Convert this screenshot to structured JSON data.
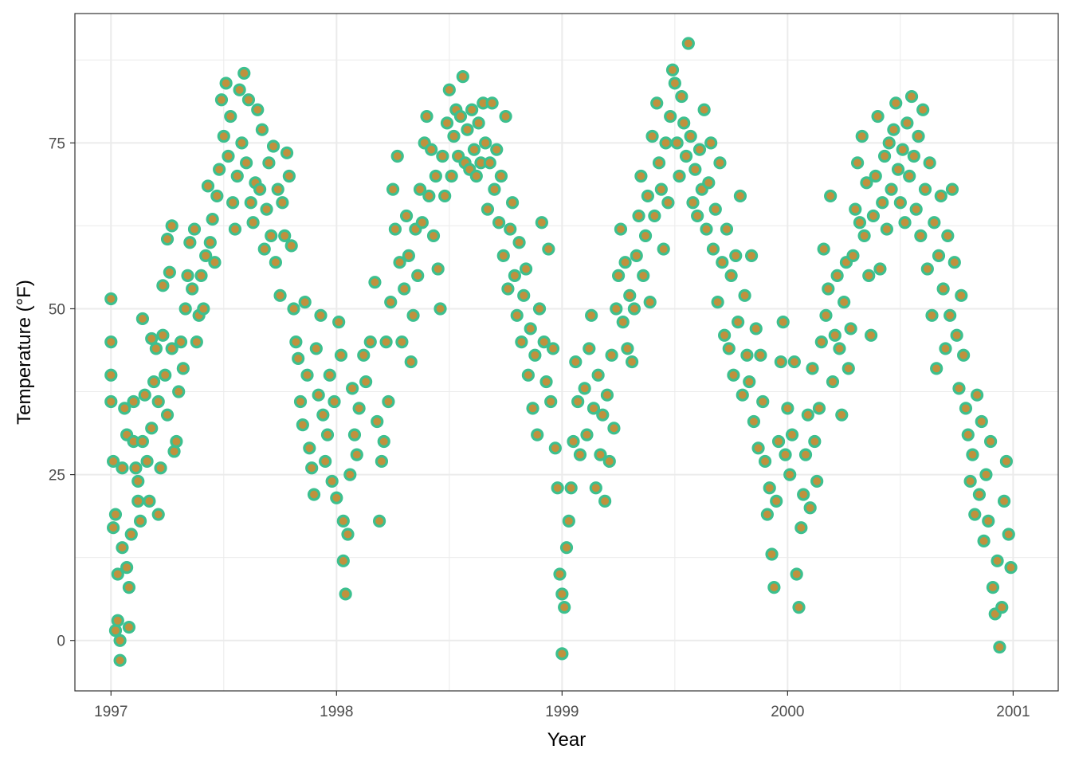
{
  "chart_data": {
    "type": "scatter",
    "xlabel": "Year",
    "ylabel": "Temperature (°F)",
    "xlim": [
      1996.84,
      2001.2
    ],
    "ylim": [
      -7.6,
      94.5
    ],
    "x_ticks": [
      1997,
      1998,
      1999,
      2000,
      2001
    ],
    "x_tick_labels": [
      "1997",
      "1998",
      "1999",
      "2000",
      "2001"
    ],
    "y_ticks": [
      0,
      25,
      50,
      75
    ],
    "y_tick_labels": [
      "0",
      "25",
      "50",
      "75"
    ],
    "grid": true,
    "theme": "bw",
    "colors": {
      "point_fill": "#c0913d",
      "point_stroke": "#3cc08f",
      "grid": "#ebebeb",
      "panel_border": "#333333"
    },
    "points": [
      [
        1997.0,
        45
      ],
      [
        1997.0,
        51.5
      ],
      [
        1997.0,
        40
      ],
      [
        1997.0,
        36
      ],
      [
        1997.01,
        27
      ],
      [
        1997.01,
        17
      ],
      [
        1997.02,
        19
      ],
      [
        1997.02,
        1.5
      ],
      [
        1997.03,
        3
      ],
      [
        1997.03,
        10
      ],
      [
        1997.04,
        -3
      ],
      [
        1997.04,
        0
      ],
      [
        1997.05,
        14
      ],
      [
        1997.05,
        26
      ],
      [
        1997.06,
        35
      ],
      [
        1997.07,
        31
      ],
      [
        1997.07,
        11
      ],
      [
        1997.08,
        8
      ],
      [
        1997.08,
        2
      ],
      [
        1997.09,
        16
      ],
      [
        1997.1,
        36
      ],
      [
        1997.1,
        30
      ],
      [
        1997.11,
        26
      ],
      [
        1997.12,
        21
      ],
      [
        1997.12,
        24
      ],
      [
        1997.13,
        18
      ],
      [
        1997.14,
        30
      ],
      [
        1997.14,
        48.5
      ],
      [
        1997.15,
        37
      ],
      [
        1997.16,
        27
      ],
      [
        1997.17,
        21
      ],
      [
        1997.18,
        32
      ],
      [
        1997.18,
        45.5
      ],
      [
        1997.19,
        39
      ],
      [
        1997.2,
        44
      ],
      [
        1997.21,
        36
      ],
      [
        1997.21,
        19
      ],
      [
        1997.22,
        26
      ],
      [
        1997.23,
        46
      ],
      [
        1997.23,
        53.5
      ],
      [
        1997.24,
        40
      ],
      [
        1997.25,
        60.5
      ],
      [
        1997.25,
        34
      ],
      [
        1997.26,
        55.5
      ],
      [
        1997.27,
        62.5
      ],
      [
        1997.27,
        44
      ],
      [
        1997.28,
        28.5
      ],
      [
        1997.29,
        30
      ],
      [
        1997.3,
        37.5
      ],
      [
        1997.31,
        45
      ],
      [
        1997.32,
        41
      ],
      [
        1997.33,
        50
      ],
      [
        1997.34,
        55
      ],
      [
        1997.35,
        60
      ],
      [
        1997.36,
        53
      ],
      [
        1997.37,
        62
      ],
      [
        1997.38,
        45
      ],
      [
        1997.39,
        49
      ],
      [
        1997.4,
        55
      ],
      [
        1997.41,
        50
      ],
      [
        1997.42,
        58
      ],
      [
        1997.43,
        68.5
      ],
      [
        1997.44,
        60
      ],
      [
        1997.45,
        63.5
      ],
      [
        1997.46,
        57
      ],
      [
        1997.47,
        67
      ],
      [
        1997.48,
        71
      ],
      [
        1997.49,
        81.5
      ],
      [
        1997.5,
        76
      ],
      [
        1997.51,
        84
      ],
      [
        1997.52,
        73
      ],
      [
        1997.53,
        79
      ],
      [
        1997.54,
        66
      ],
      [
        1997.55,
        62
      ],
      [
        1997.56,
        70
      ],
      [
        1997.57,
        83
      ],
      [
        1997.58,
        75
      ],
      [
        1997.59,
        85.5
      ],
      [
        1997.6,
        72
      ],
      [
        1997.61,
        81.5
      ],
      [
        1997.62,
        66
      ],
      [
        1997.63,
        63
      ],
      [
        1997.64,
        69
      ],
      [
        1997.65,
        80
      ],
      [
        1997.66,
        68
      ],
      [
        1997.67,
        77
      ],
      [
        1997.68,
        59
      ],
      [
        1997.69,
        65
      ],
      [
        1997.7,
        72
      ],
      [
        1997.71,
        61
      ],
      [
        1997.72,
        74.5
      ],
      [
        1997.73,
        57
      ],
      [
        1997.74,
        68
      ],
      [
        1997.75,
        52
      ],
      [
        1997.76,
        66
      ],
      [
        1997.77,
        61
      ],
      [
        1997.78,
        73.5
      ],
      [
        1997.79,
        70
      ],
      [
        1997.8,
        59.5
      ],
      [
        1997.81,
        50
      ],
      [
        1997.82,
        45
      ],
      [
        1997.83,
        42.5
      ],
      [
        1997.84,
        36
      ],
      [
        1997.85,
        32.5
      ],
      [
        1997.86,
        51
      ],
      [
        1997.87,
        40
      ],
      [
        1997.88,
        29
      ],
      [
        1997.89,
        26
      ],
      [
        1997.9,
        22
      ],
      [
        1997.91,
        44
      ],
      [
        1997.92,
        37
      ],
      [
        1997.93,
        49
      ],
      [
        1997.94,
        34
      ],
      [
        1997.95,
        27
      ],
      [
        1997.96,
        31
      ],
      [
        1997.97,
        40
      ],
      [
        1997.98,
        24
      ],
      [
        1997.99,
        36
      ],
      [
        1998.0,
        21.5
      ],
      [
        1998.01,
        48
      ],
      [
        1998.02,
        43
      ],
      [
        1998.03,
        18
      ],
      [
        1998.03,
        12
      ],
      [
        1998.04,
        7
      ],
      [
        1998.05,
        16
      ],
      [
        1998.06,
        25
      ],
      [
        1998.07,
        38
      ],
      [
        1998.08,
        31
      ],
      [
        1998.09,
        28
      ],
      [
        1998.1,
        35
      ],
      [
        1998.12,
        43
      ],
      [
        1998.13,
        39
      ],
      [
        1998.15,
        45
      ],
      [
        1998.17,
        54
      ],
      [
        1998.18,
        33
      ],
      [
        1998.19,
        18
      ],
      [
        1998.2,
        27
      ],
      [
        1998.21,
        30
      ],
      [
        1998.22,
        45
      ],
      [
        1998.23,
        36
      ],
      [
        1998.24,
        51
      ],
      [
        1998.25,
        68
      ],
      [
        1998.26,
        62
      ],
      [
        1998.27,
        73
      ],
      [
        1998.28,
        57
      ],
      [
        1998.29,
        45
      ],
      [
        1998.3,
        53
      ],
      [
        1998.31,
        64
      ],
      [
        1998.32,
        58
      ],
      [
        1998.33,
        42
      ],
      [
        1998.34,
        49
      ],
      [
        1998.35,
        62
      ],
      [
        1998.36,
        55
      ],
      [
        1998.37,
        68
      ],
      [
        1998.38,
        63
      ],
      [
        1998.39,
        75
      ],
      [
        1998.4,
        79
      ],
      [
        1998.41,
        67
      ],
      [
        1998.42,
        74
      ],
      [
        1998.43,
        61
      ],
      [
        1998.44,
        70
      ],
      [
        1998.45,
        56
      ],
      [
        1998.46,
        50
      ],
      [
        1998.47,
        73
      ],
      [
        1998.48,
        67
      ],
      [
        1998.49,
        78
      ],
      [
        1998.5,
        83
      ],
      [
        1998.51,
        70
      ],
      [
        1998.52,
        76
      ],
      [
        1998.53,
        80
      ],
      [
        1998.54,
        73
      ],
      [
        1998.55,
        79
      ],
      [
        1998.56,
        85
      ],
      [
        1998.57,
        72
      ],
      [
        1998.58,
        77
      ],
      [
        1998.59,
        71
      ],
      [
        1998.6,
        80
      ],
      [
        1998.61,
        74
      ],
      [
        1998.62,
        70
      ],
      [
        1998.63,
        78
      ],
      [
        1998.64,
        72
      ],
      [
        1998.65,
        81
      ],
      [
        1998.66,
        75
      ],
      [
        1998.67,
        65
      ],
      [
        1998.68,
        72
      ],
      [
        1998.69,
        81
      ],
      [
        1998.7,
        68
      ],
      [
        1998.71,
        74
      ],
      [
        1998.72,
        63
      ],
      [
        1998.73,
        70
      ],
      [
        1998.74,
        58
      ],
      [
        1998.75,
        79
      ],
      [
        1998.76,
        53
      ],
      [
        1998.77,
        62
      ],
      [
        1998.78,
        66
      ],
      [
        1998.79,
        55
      ],
      [
        1998.8,
        49
      ],
      [
        1998.81,
        60
      ],
      [
        1998.82,
        45
      ],
      [
        1998.83,
        52
      ],
      [
        1998.84,
        56
      ],
      [
        1998.85,
        40
      ],
      [
        1998.86,
        47
      ],
      [
        1998.87,
        35
      ],
      [
        1998.88,
        43
      ],
      [
        1998.89,
        31
      ],
      [
        1998.9,
        50
      ],
      [
        1998.91,
        63
      ],
      [
        1998.92,
        45
      ],
      [
        1998.93,
        39
      ],
      [
        1998.94,
        59
      ],
      [
        1998.95,
        36
      ],
      [
        1998.96,
        44
      ],
      [
        1998.97,
        29
      ],
      [
        1998.98,
        23
      ],
      [
        1998.99,
        10
      ],
      [
        1999.0,
        7
      ],
      [
        1999.0,
        -2
      ],
      [
        1999.01,
        5
      ],
      [
        1999.02,
        14
      ],
      [
        1999.03,
        18
      ],
      [
        1999.04,
        23
      ],
      [
        1999.05,
        30
      ],
      [
        1999.06,
        42
      ],
      [
        1999.07,
        36
      ],
      [
        1999.08,
        28
      ],
      [
        1999.1,
        38
      ],
      [
        1999.11,
        31
      ],
      [
        1999.12,
        44
      ],
      [
        1999.13,
        49
      ],
      [
        1999.14,
        35
      ],
      [
        1999.15,
        23
      ],
      [
        1999.16,
        40
      ],
      [
        1999.17,
        28
      ],
      [
        1999.18,
        34
      ],
      [
        1999.19,
        21
      ],
      [
        1999.2,
        37
      ],
      [
        1999.21,
        27
      ],
      [
        1999.22,
        43
      ],
      [
        1999.23,
        32
      ],
      [
        1999.24,
        50
      ],
      [
        1999.25,
        55
      ],
      [
        1999.26,
        62
      ],
      [
        1999.27,
        48
      ],
      [
        1999.28,
        57
      ],
      [
        1999.29,
        44
      ],
      [
        1999.3,
        52
      ],
      [
        1999.31,
        42
      ],
      [
        1999.32,
        50
      ],
      [
        1999.33,
        58
      ],
      [
        1999.34,
        64
      ],
      [
        1999.35,
        70
      ],
      [
        1999.36,
        55
      ],
      [
        1999.37,
        61
      ],
      [
        1999.38,
        67
      ],
      [
        1999.39,
        51
      ],
      [
        1999.4,
        76
      ],
      [
        1999.41,
        64
      ],
      [
        1999.42,
        81
      ],
      [
        1999.43,
        72
      ],
      [
        1999.44,
        68
      ],
      [
        1999.45,
        59
      ],
      [
        1999.46,
        75
      ],
      [
        1999.47,
        66
      ],
      [
        1999.48,
        79
      ],
      [
        1999.49,
        86
      ],
      [
        1999.5,
        84
      ],
      [
        1999.51,
        75
      ],
      [
        1999.52,
        70
      ],
      [
        1999.53,
        82
      ],
      [
        1999.54,
        78
      ],
      [
        1999.55,
        73
      ],
      [
        1999.56,
        90
      ],
      [
        1999.57,
        76
      ],
      [
        1999.58,
        66
      ],
      [
        1999.59,
        71
      ],
      [
        1999.6,
        64
      ],
      [
        1999.61,
        74
      ],
      [
        1999.62,
        68
      ],
      [
        1999.63,
        80
      ],
      [
        1999.64,
        62
      ],
      [
        1999.65,
        69
      ],
      [
        1999.66,
        75
      ],
      [
        1999.67,
        59
      ],
      [
        1999.68,
        65
      ],
      [
        1999.69,
        51
      ],
      [
        1999.7,
        72
      ],
      [
        1999.71,
        57
      ],
      [
        1999.72,
        46
      ],
      [
        1999.73,
        62
      ],
      [
        1999.74,
        44
      ],
      [
        1999.75,
        55
      ],
      [
        1999.76,
        40
      ],
      [
        1999.77,
        58
      ],
      [
        1999.78,
        48
      ],
      [
        1999.79,
        67
      ],
      [
        1999.8,
        37
      ],
      [
        1999.81,
        52
      ],
      [
        1999.82,
        43
      ],
      [
        1999.83,
        39
      ],
      [
        1999.84,
        58
      ],
      [
        1999.85,
        33
      ],
      [
        1999.86,
        47
      ],
      [
        1999.87,
        29
      ],
      [
        1999.88,
        43
      ],
      [
        1999.89,
        36
      ],
      [
        1999.9,
        27
      ],
      [
        1999.91,
        19
      ],
      [
        1999.92,
        23
      ],
      [
        1999.93,
        13
      ],
      [
        1999.94,
        8
      ],
      [
        1999.95,
        21
      ],
      [
        1999.96,
        30
      ],
      [
        1999.97,
        42
      ],
      [
        1999.98,
        48
      ],
      [
        1999.99,
        28
      ],
      [
        2000.0,
        35
      ],
      [
        2000.01,
        25
      ],
      [
        2000.02,
        31
      ],
      [
        2000.03,
        42
      ],
      [
        2000.04,
        10
      ],
      [
        2000.05,
        5
      ],
      [
        2000.06,
        17
      ],
      [
        2000.07,
        22
      ],
      [
        2000.08,
        28
      ],
      [
        2000.09,
        34
      ],
      [
        2000.1,
        20
      ],
      [
        2000.11,
        41
      ],
      [
        2000.12,
        30
      ],
      [
        2000.13,
        24
      ],
      [
        2000.14,
        35
      ],
      [
        2000.15,
        45
      ],
      [
        2000.16,
        59
      ],
      [
        2000.17,
        49
      ],
      [
        2000.18,
        53
      ],
      [
        2000.19,
        67
      ],
      [
        2000.2,
        39
      ],
      [
        2000.21,
        46
      ],
      [
        2000.22,
        55
      ],
      [
        2000.23,
        44
      ],
      [
        2000.24,
        34
      ],
      [
        2000.25,
        51
      ],
      [
        2000.26,
        57
      ],
      [
        2000.27,
        41
      ],
      [
        2000.28,
        47
      ],
      [
        2000.29,
        58
      ],
      [
        2000.3,
        65
      ],
      [
        2000.31,
        72
      ],
      [
        2000.32,
        63
      ],
      [
        2000.33,
        76
      ],
      [
        2000.34,
        61
      ],
      [
        2000.35,
        69
      ],
      [
        2000.36,
        55
      ],
      [
        2000.37,
        46
      ],
      [
        2000.38,
        64
      ],
      [
        2000.39,
        70
      ],
      [
        2000.4,
        79
      ],
      [
        2000.41,
        56
      ],
      [
        2000.42,
        66
      ],
      [
        2000.43,
        73
      ],
      [
        2000.44,
        62
      ],
      [
        2000.45,
        75
      ],
      [
        2000.46,
        68
      ],
      [
        2000.47,
        77
      ],
      [
        2000.48,
        81
      ],
      [
        2000.49,
        71
      ],
      [
        2000.5,
        66
      ],
      [
        2000.51,
        74
      ],
      [
        2000.52,
        63
      ],
      [
        2000.53,
        78
      ],
      [
        2000.54,
        70
      ],
      [
        2000.55,
        82
      ],
      [
        2000.56,
        73
      ],
      [
        2000.57,
        65
      ],
      [
        2000.58,
        76
      ],
      [
        2000.59,
        61
      ],
      [
        2000.6,
        80
      ],
      [
        2000.61,
        68
      ],
      [
        2000.62,
        56
      ],
      [
        2000.63,
        72
      ],
      [
        2000.64,
        49
      ],
      [
        2000.65,
        63
      ],
      [
        2000.66,
        41
      ],
      [
        2000.67,
        58
      ],
      [
        2000.68,
        67
      ],
      [
        2000.69,
        53
      ],
      [
        2000.7,
        44
      ],
      [
        2000.71,
        61
      ],
      [
        2000.72,
        49
      ],
      [
        2000.73,
        68
      ],
      [
        2000.74,
        57
      ],
      [
        2000.75,
        46
      ],
      [
        2000.76,
        38
      ],
      [
        2000.77,
        52
      ],
      [
        2000.78,
        43
      ],
      [
        2000.79,
        35
      ],
      [
        2000.8,
        31
      ],
      [
        2000.81,
        24
      ],
      [
        2000.82,
        28
      ],
      [
        2000.83,
        19
      ],
      [
        2000.84,
        37
      ],
      [
        2000.85,
        22
      ],
      [
        2000.86,
        33
      ],
      [
        2000.87,
        15
      ],
      [
        2000.88,
        25
      ],
      [
        2000.89,
        18
      ],
      [
        2000.9,
        30
      ],
      [
        2000.91,
        8
      ],
      [
        2000.92,
        4
      ],
      [
        2000.93,
        12
      ],
      [
        2000.94,
        -1
      ],
      [
        2000.95,
        5
      ],
      [
        2000.96,
        21
      ],
      [
        2000.97,
        27
      ],
      [
        2000.98,
        16
      ],
      [
        2000.99,
        11
      ]
    ]
  }
}
